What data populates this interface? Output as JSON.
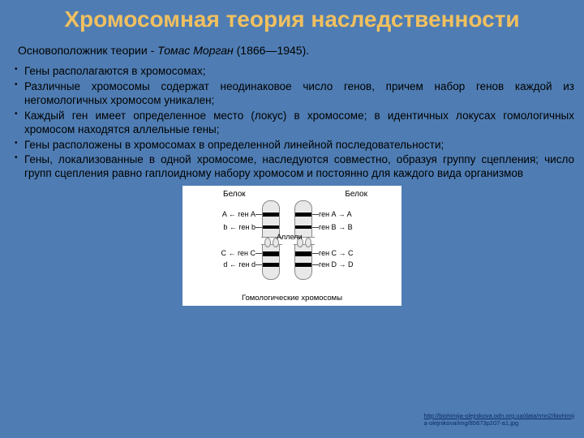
{
  "title": "Хромосомная  теория наследственности",
  "subtitle_prefix": "Основоположник теории - ",
  "subtitle_person": "Томас Морган",
  "subtitle_dates": " (1866—1945).",
  "bullets": [
    "Гены располагаются в хромосомах;",
    "Различные хромосомы содержат неодинаковое число генов, причем набор генов каждой из негомологичных хромосом уникален;",
    "Каждый ген имеет определенное место (локус) в хромосоме; в идентичных локусах гомологичных хромосом находятся аллельные гены;",
    "Гены расположены в хромосомах в определенной линейной последовательности;",
    "Гены, локализованные в одной хромосоме, наследуются совместно, образуя группу сцепления; число групп сцепления равно гаплоидному набору хромосом и постоянно для каждого вида организмов"
  ],
  "diagram": {
    "protein_label": "Белок",
    "alleles_label": "Аллели",
    "caption": "Гомологические хромосомы",
    "left_labels": {
      "A": "A ← ген A",
      "B": "b ← ген b",
      "C": "C ← ген C",
      "D": "d ← ген d"
    },
    "right_labels": {
      "A": "ген A → A",
      "B": "ген B → B",
      "C": "ген C → C",
      "D": "ген D → D"
    }
  },
  "citation": {
    "link_text": "http://biohimija-olejnikova.odn.org.ua/data/rmn2/biohimij",
    "tail": "a-olejnikova/img/85673p207-a1.jpg"
  },
  "colors": {
    "background": "#4f7db3",
    "title_color": "#f0c060",
    "text_color": "#000000",
    "diagram_bg": "#ffffff",
    "chrom_fill": "#e8e8e8",
    "link_color": "#0b2a66"
  }
}
